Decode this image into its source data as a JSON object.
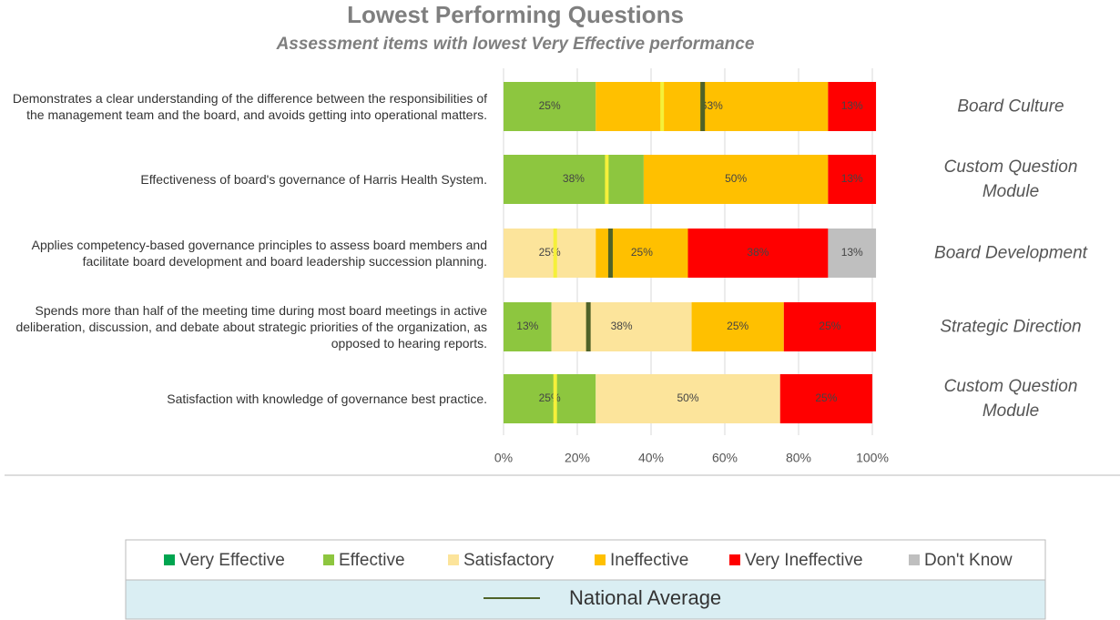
{
  "chart_data": {
    "type": "stacked_barh",
    "title": "Lowest Performing Questions",
    "subtitle": "Assessment items with lowest Very Effective performance",
    "categories": [
      "Demonstrates a clear understanding of the difference between the responsibilities of the management team and the board, and avoids getting into operational matters.",
      "Effectiveness of board's governance of Harris Health System.",
      "Applies competency-based governance principles to assess board members and facilitate board development and board leadership succession planning.",
      "Spends more than half of the meeting time during most board meetings in active deliberation, discussion, and debate about strategic priorities of the organization, as opposed to hearing reports.",
      "Satisfaction with knowledge of governance best practice."
    ],
    "groups": [
      "Board Culture",
      "Custom Question Module",
      "Board Development",
      "Strategic Direction",
      "Custom Question Module"
    ],
    "series": [
      {
        "name": "Very Effective",
        "color": "#00a550",
        "values": [
          null,
          null,
          null,
          null,
          null
        ],
        "value_labels": [
          null,
          null,
          null,
          null,
          null
        ]
      },
      {
        "name": "Effective",
        "color": "#8dc63f",
        "values": [
          25,
          38,
          null,
          13,
          25
        ],
        "value_labels": [
          "25%",
          "38%",
          null,
          "13%",
          "25%"
        ]
      },
      {
        "name": "Satisfactory",
        "color": "#fce49b",
        "values": [
          null,
          null,
          25,
          38,
          50
        ],
        "value_labels": [
          null,
          null,
          "25%",
          "38%",
          "50%"
        ]
      },
      {
        "name": "Ineffective",
        "color": "#ffc000",
        "values": [
          63,
          50,
          25,
          25,
          null
        ],
        "value_labels": [
          "63%",
          "50%",
          "25%",
          "25%",
          null
        ]
      },
      {
        "name": "Very Ineffective",
        "color": "#ff0000",
        "values": [
          13,
          13,
          38,
          25,
          25
        ],
        "value_labels": [
          "13%",
          "13%",
          "38%",
          "25%",
          "25%"
        ]
      },
      {
        "name": "Don't Know",
        "color": "#bfbfbf",
        "values": [
          null,
          null,
          13,
          null,
          null
        ],
        "value_labels": [
          null,
          null,
          "13%",
          null,
          null
        ]
      }
    ],
    "reference": {
      "name": "National Average",
      "color": "#4f6228",
      "values": [
        54,
        null,
        29,
        23,
        null
      ]
    },
    "markers": {
      "color": "#f5f03a",
      "values": [
        43,
        28,
        14,
        null,
        14
      ]
    },
    "xlim": [
      0,
      100
    ],
    "xticks": [
      {
        "value": 0,
        "label": "0%"
      },
      {
        "value": 20,
        "label": "20%"
      },
      {
        "value": 40,
        "label": "40%"
      },
      {
        "value": 60,
        "label": "60%"
      },
      {
        "value": 80,
        "label": "80%"
      },
      {
        "value": 100,
        "label": "100%"
      }
    ],
    "grid": true
  }
}
